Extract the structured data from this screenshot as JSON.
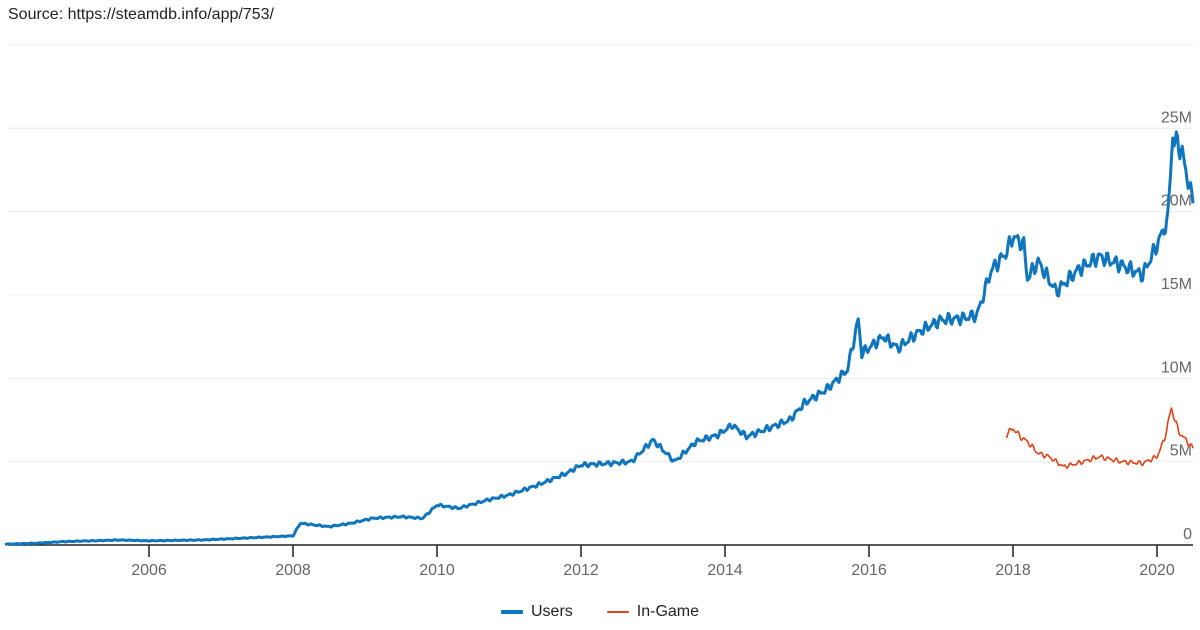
{
  "source_text": "Source: https://steamdb.info/app/753/",
  "colors": {
    "users": "#0f75bd",
    "in_game": "#e0421a",
    "grid": "#ececec",
    "axis": "#222222",
    "tick_text": "#666666"
  },
  "legend": [
    {
      "label": "Users",
      "color": "#0f75bd"
    },
    {
      "label": "In-Game",
      "color": "#e0421a"
    }
  ],
  "chart_data": {
    "type": "line",
    "title": "",
    "source": "https://steamdb.info/app/753/",
    "xlabel": "",
    "ylabel": "",
    "x_ticks": [
      "2006",
      "2008",
      "2010",
      "2012",
      "2014",
      "2016",
      "2018",
      "2020"
    ],
    "y_ticks": [
      "0",
      "5M",
      "10M",
      "15M",
      "20M",
      "25M"
    ],
    "ylim": [
      0,
      30000000
    ],
    "xlim": [
      2004.0,
      2020.55
    ],
    "grid": true,
    "y_axis_position": "right",
    "legend_position": "bottom",
    "series": [
      {
        "name": "Users",
        "x": [
          2004.0,
          2004.4,
          2004.8,
          2005.2,
          2005.6,
          2006.0,
          2006.7,
          2007.0,
          2007.5,
          2008.0,
          2008.1,
          2008.5,
          2008.8,
          2009.1,
          2009.5,
          2009.8,
          2010.0,
          2010.3,
          2010.7,
          2011.0,
          2011.4,
          2011.8,
          2012.0,
          2012.4,
          2012.7,
          2013.0,
          2013.3,
          2013.6,
          2013.9,
          2014.1,
          2014.3,
          2014.6,
          2014.9,
          2015.1,
          2015.4,
          2015.7,
          2015.85,
          2015.9,
          2016.2,
          2016.4,
          2016.7,
          2017.0,
          2017.3,
          2017.5,
          2017.7,
          2017.9,
          2018.0,
          2018.15,
          2018.2,
          2018.35,
          2018.6,
          2018.9,
          2019.2,
          2019.5,
          2019.8,
          2020.0,
          2020.15,
          2020.22,
          2020.35,
          2020.5
        ],
        "values": [
          0.05,
          0.1,
          0.2,
          0.25,
          0.3,
          0.25,
          0.3,
          0.35,
          0.45,
          0.55,
          1.3,
          1.1,
          1.3,
          1.6,
          1.7,
          1.6,
          2.4,
          2.2,
          2.7,
          3.0,
          3.6,
          4.3,
          4.8,
          4.9,
          5.0,
          6.3,
          5.0,
          6.2,
          6.6,
          7.2,
          6.5,
          7.0,
          7.5,
          8.5,
          9.3,
          10.5,
          13.5,
          11.5,
          12.5,
          11.8,
          12.8,
          13.5,
          13.6,
          13.8,
          16.5,
          17.5,
          18.5,
          18.0,
          16.0,
          17.0,
          15.2,
          16.5,
          17.3,
          16.8,
          16.2,
          18.0,
          19.5,
          24.6,
          23.5,
          20.5
        ],
        "unit": "millions",
        "color": "#0f75bd"
      },
      {
        "name": "In-Game",
        "x": [
          2017.9,
          2018.0,
          2018.1,
          2018.2,
          2018.35,
          2018.5,
          2018.7,
          2018.9,
          2019.2,
          2019.5,
          2019.8,
          2020.0,
          2020.1,
          2020.2,
          2020.3,
          2020.5
        ],
        "values": [
          6.6,
          7.0,
          6.5,
          6.2,
          5.5,
          5.3,
          4.7,
          4.9,
          5.3,
          5.0,
          4.9,
          5.3,
          6.3,
          8.2,
          6.8,
          5.8
        ],
        "unit": "millions",
        "color": "#e0421a"
      }
    ]
  }
}
